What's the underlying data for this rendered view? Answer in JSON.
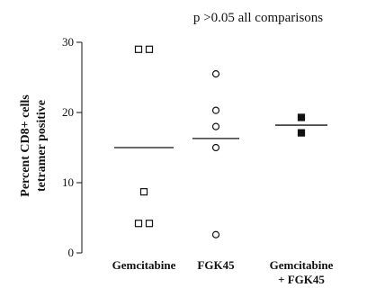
{
  "chart_data": {
    "type": "scatter",
    "title": "p >0.05 all comparisons",
    "ylabel_line1": "Percent CD8+ cells",
    "ylabel_line2": "tetramer positive",
    "xlabel": "",
    "ylim": [
      0,
      30
    ],
    "yticks": [
      "0",
      "10",
      "20",
      "30"
    ],
    "categories": [
      {
        "label_line1": "Gemcitabine",
        "label_line2": ""
      },
      {
        "label_line1": "FGK45",
        "label_line2": ""
      },
      {
        "label_line1": "Gemcitabine",
        "label_line2": "+ FGK45"
      }
    ],
    "series": [
      {
        "marker": "open-square",
        "color": "#111111",
        "points": [
          {
            "category": 0,
            "y": 29.0,
            "side": -1
          },
          {
            "category": 0,
            "y": 29.0,
            "side": 1
          },
          {
            "category": 0,
            "y": 8.7,
            "side": 0
          },
          {
            "category": 0,
            "y": 4.2,
            "side": -1
          },
          {
            "category": 0,
            "y": 4.2,
            "side": 1
          }
        ],
        "median": 15.0
      },
      {
        "marker": "open-circle",
        "color": "#111111",
        "points": [
          {
            "category": 1,
            "y": 25.5,
            "side": 0
          },
          {
            "category": 1,
            "y": 20.3,
            "side": 0
          },
          {
            "category": 1,
            "y": 18.0,
            "side": 0
          },
          {
            "category": 1,
            "y": 15.0,
            "side": 0
          },
          {
            "category": 1,
            "y": 2.6,
            "side": 0
          }
        ],
        "median": 16.3
      },
      {
        "marker": "filled-square",
        "color": "#111111",
        "points": [
          {
            "category": 2,
            "y": 19.3,
            "side": 0
          },
          {
            "category": 2,
            "y": 17.1,
            "side": 0
          }
        ],
        "median": 18.2
      }
    ]
  }
}
